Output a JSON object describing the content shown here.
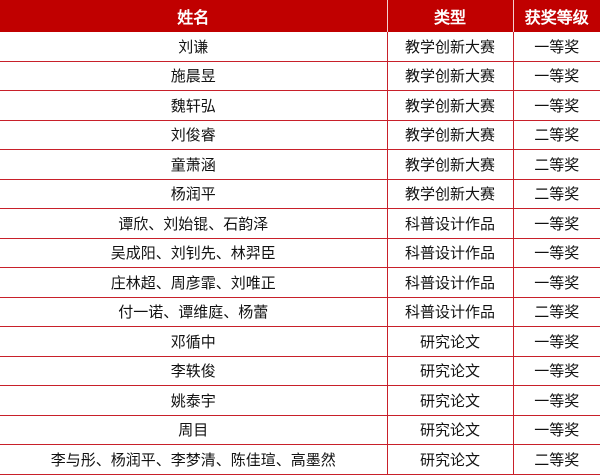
{
  "colors": {
    "header_bg": "#c00000",
    "border": "#c8202a"
  },
  "headers": [
    "姓名",
    "类型",
    "获奖等级"
  ],
  "rows": [
    [
      "刘谦",
      "教学创新大赛",
      "一等奖"
    ],
    [
      "施晨昱",
      "教学创新大赛",
      "一等奖"
    ],
    [
      "魏轩弘",
      "教学创新大赛",
      "一等奖"
    ],
    [
      "刘俊睿",
      "教学创新大赛",
      "二等奖"
    ],
    [
      "童萧涵",
      "教学创新大赛",
      "二等奖"
    ],
    [
      "杨润平",
      "教学创新大赛",
      "二等奖"
    ],
    [
      "谭欣、刘始锟、石韵泽",
      "科普设计作品",
      "一等奖"
    ],
    [
      "吴成阳、刘钊先、林羿臣",
      "科普设计作品",
      "一等奖"
    ],
    [
      "庄林超、周彦霏、刘唯正",
      "科普设计作品",
      "一等奖"
    ],
    [
      "付一诺、谭维庭、杨蕾",
      "科普设计作品",
      "二等奖"
    ],
    [
      "邓循中",
      "研究论文",
      "一等奖"
    ],
    [
      "李轶俊",
      "研究论文",
      "一等奖"
    ],
    [
      "姚泰宇",
      "研究论文",
      "一等奖"
    ],
    [
      "周目",
      "研究论文",
      "一等奖"
    ],
    [
      "李与彤、杨润平、李梦清、陈佳瑄、高墨然",
      "研究论文",
      "二等奖"
    ]
  ]
}
